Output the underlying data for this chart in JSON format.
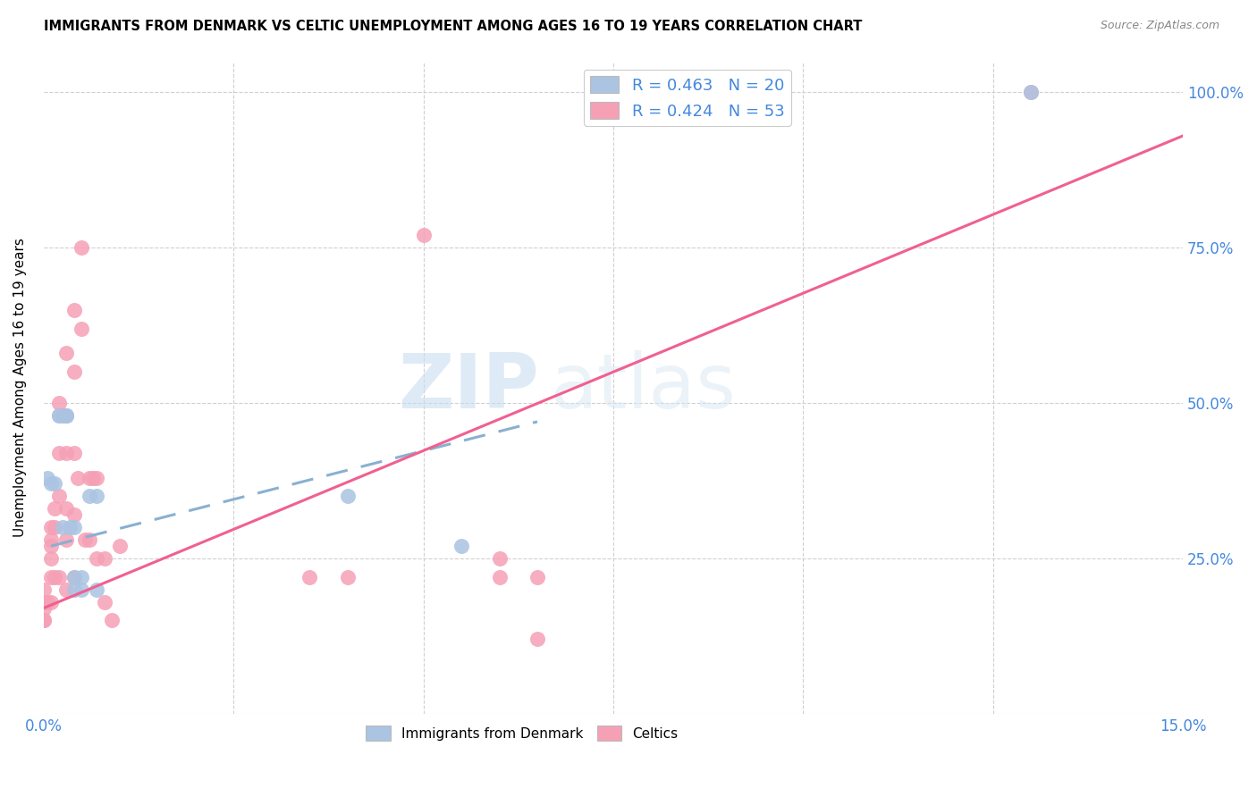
{
  "title": "IMMIGRANTS FROM DENMARK VS CELTIC UNEMPLOYMENT AMONG AGES 16 TO 19 YEARS CORRELATION CHART",
  "source": "Source: ZipAtlas.com",
  "ylabel": "Unemployment Among Ages 16 to 19 years",
  "xlim": [
    0.0,
    0.15
  ],
  "ylim": [
    0.0,
    1.05
  ],
  "denmark_color": "#aac4e2",
  "celtics_color": "#f5a0b5",
  "denmark_line_color": "#6699cc",
  "celtics_line_color": "#f06090",
  "denmark_R": 0.463,
  "denmark_N": 20,
  "celtics_R": 0.424,
  "celtics_N": 53,
  "legend_color": "#4488dd",
  "watermark1": "ZIP",
  "watermark2": "atlas",
  "denmark_x": [
    0.0005,
    0.001,
    0.0015,
    0.002,
    0.002,
    0.0025,
    0.003,
    0.003,
    0.0035,
    0.004,
    0.004,
    0.004,
    0.005,
    0.005,
    0.006,
    0.007,
    0.007,
    0.04,
    0.055,
    0.13
  ],
  "denmark_y": [
    0.38,
    0.37,
    0.37,
    0.48,
    0.48,
    0.3,
    0.48,
    0.48,
    0.3,
    0.3,
    0.22,
    0.2,
    0.22,
    0.2,
    0.35,
    0.35,
    0.2,
    0.35,
    0.27,
    1.0
  ],
  "celtics_x": [
    0.0,
    0.0,
    0.0,
    0.0,
    0.0,
    0.0,
    0.0005,
    0.001,
    0.001,
    0.001,
    0.001,
    0.001,
    0.001,
    0.0015,
    0.0015,
    0.0015,
    0.002,
    0.002,
    0.002,
    0.002,
    0.0025,
    0.003,
    0.003,
    0.003,
    0.003,
    0.003,
    0.003,
    0.004,
    0.004,
    0.004,
    0.004,
    0.004,
    0.0045,
    0.005,
    0.005,
    0.0055,
    0.006,
    0.006,
    0.0065,
    0.007,
    0.007,
    0.008,
    0.008,
    0.009,
    0.01,
    0.035,
    0.04,
    0.05,
    0.06,
    0.065,
    0.06,
    0.065,
    0.13
  ],
  "celtics_y": [
    0.18,
    0.18,
    0.17,
    0.15,
    0.2,
    0.15,
    0.18,
    0.3,
    0.28,
    0.27,
    0.25,
    0.22,
    0.18,
    0.33,
    0.3,
    0.22,
    0.5,
    0.42,
    0.35,
    0.22,
    0.48,
    0.58,
    0.48,
    0.42,
    0.33,
    0.28,
    0.2,
    0.65,
    0.55,
    0.42,
    0.32,
    0.22,
    0.38,
    0.75,
    0.62,
    0.28,
    0.38,
    0.28,
    0.38,
    0.38,
    0.25,
    0.25,
    0.18,
    0.15,
    0.27,
    0.22,
    0.22,
    0.77,
    0.25,
    0.12,
    0.22,
    0.22,
    1.0
  ],
  "dk_line_x": [
    0.001,
    0.065
  ],
  "dk_line_y": [
    0.27,
    0.47
  ],
  "ct_line_x": [
    0.0,
    0.15
  ],
  "ct_line_y": [
    0.17,
    0.93
  ]
}
